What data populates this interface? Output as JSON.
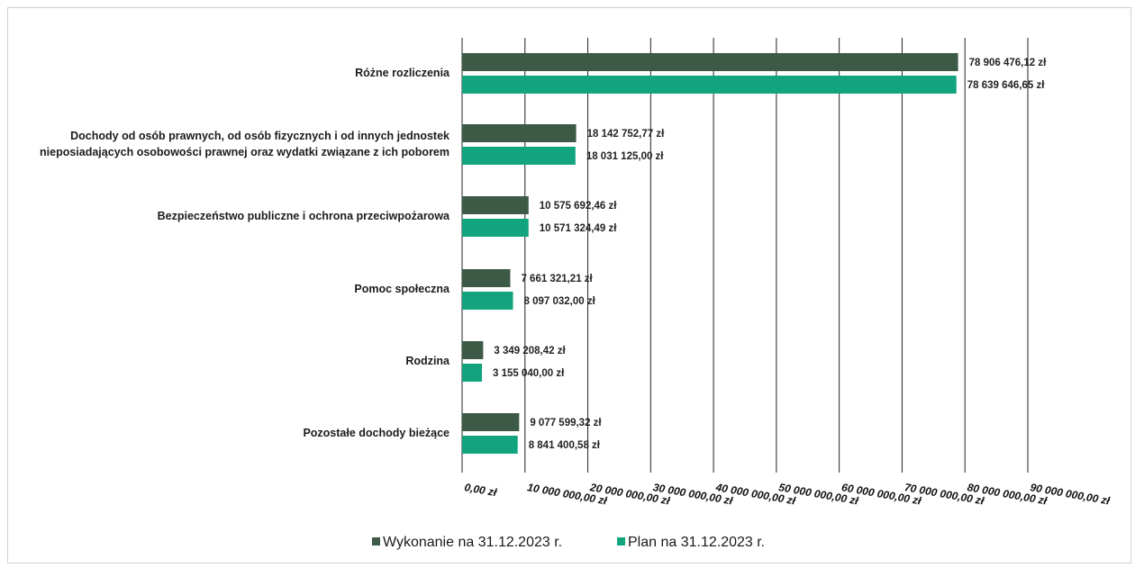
{
  "chart_data": {
    "type": "bar",
    "orientation": "horizontal",
    "categories": [
      [
        "Różne rozliczenia"
      ],
      [
        "Dochody od osób prawnych, od osób fizycznych i od innych jednostek",
        "nieposiadających osobowości prawnej oraz wydatki związane z ich poborem"
      ],
      [
        "Bezpieczeństwo publiczne i ochrona przeciwpożarowa"
      ],
      [
        "Pomoc społeczna"
      ],
      [
        "Rodzina"
      ],
      [
        "Pozostałe dochody bieżące"
      ]
    ],
    "series": [
      {
        "name": "Wykonanie na 31.12.2023 r.",
        "color": "#3d5a47",
        "values": [
          78906476.12,
          18142752.77,
          10575692.46,
          7661321.21,
          3349208.42,
          9077599.32
        ],
        "labels": [
          "78 906 476,12 zł",
          "18 142 752,77 zł",
          "10 575 692,46 zł",
          "7 661 321,21 zł",
          "3 349 208,42 zł",
          "9 077 599,32 zł"
        ]
      },
      {
        "name": "Plan na 31.12.2023 r.",
        "color": "#11a47e",
        "values": [
          78639646.65,
          18031125.0,
          10571324.49,
          8097032.0,
          3155040.0,
          8841400.58
        ],
        "labels": [
          "78 639 646,65 zł",
          "18 031 125,00 zł",
          "10 571 324,49 zł",
          "8 097 032,00 zł",
          "3 155 040,00 zł",
          "8 841 400,58 zł"
        ]
      }
    ],
    "xlim": [
      0,
      90000000
    ],
    "xticks": [
      "0,00 zł",
      "10 000 000,00 zł",
      "20 000 000,00 zł",
      "30 000 000,00 zł",
      "40 000 000,00 zł",
      "50 000 000,00 zł",
      "60 000 000,00 zł",
      "70 000 000,00 zł",
      "80 000 000,00 zł",
      "90 000 000,00 zł"
    ],
    "grid": true,
    "legend_position": "bottom"
  }
}
